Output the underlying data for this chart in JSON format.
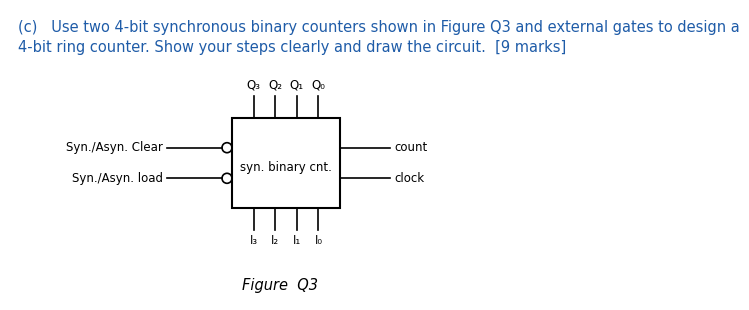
{
  "bg_color": "#ffffff",
  "title_line1": "(c)   Use two 4-bit synchronous binary counters shown in Figure Q3 and external gates to design a",
  "title_line2": "4-bit ring counter. Show your steps clearly and draw the circuit.  [9 marks]",
  "title_color": "#1F5CA8",
  "title_fontsize": 10.5,
  "box_label": "syn. binary cnt.",
  "top_labels": [
    "Q₃",
    "Q₂",
    "Q₁",
    "Q₀"
  ],
  "bot_labels": [
    "I₃",
    "I₂",
    "I₁",
    "I₀"
  ],
  "left_labels": [
    "Syn./Asyn. Clear",
    "Syn./Asyn. load"
  ],
  "right_labels": [
    "count",
    "clock"
  ],
  "figure_caption": "Figure  Q3",
  "figure_caption_fontsize": 10.5
}
